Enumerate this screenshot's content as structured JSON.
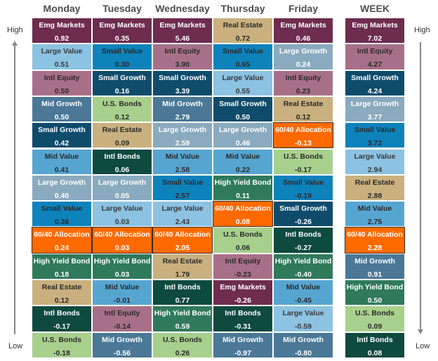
{
  "labels": {
    "high": "High",
    "low": "Low"
  },
  "colors": {
    "Emg Markets": [
      "#6e2c4f",
      "#ffffff"
    ],
    "Large Value": [
      "#8cc2e2",
      "#3a3a3a"
    ],
    "Small Value": [
      "#0e82bb",
      "#2a2a2a"
    ],
    "Intl Equity": [
      "#a87088",
      "#2a2a2a"
    ],
    "Mid Growth": [
      "#4a7896",
      "#ffffff"
    ],
    "Small Growth": [
      "#0f4c6c",
      "#ffffff"
    ],
    "Mid Value": [
      "#56a5d1",
      "#2a2a2a"
    ],
    "Large Growth": [
      "#8aaabf",
      "#ffffff"
    ],
    "60/40 Allocation": [
      "#ff6a00",
      "#ffffff"
    ],
    "High Yield Bond": [
      "#2f7a5a",
      "#ffffff"
    ],
    "Real Estate": [
      "#c9b07e",
      "#2a2a2a"
    ],
    "Intl Bonds": [
      "#0e4a3e",
      "#ffffff"
    ],
    "U.S. Bonds": [
      "#a8d08d",
      "#2a2a2a"
    ]
  },
  "columns": [
    {
      "title": "Monday",
      "cells": [
        {
          "name": "Emg Markets",
          "value": "0.92"
        },
        {
          "name": "Large Value",
          "value": "0.51"
        },
        {
          "name": "Intl Equity",
          "value": "0.50"
        },
        {
          "name": "Mid Growth",
          "value": "0.50"
        },
        {
          "name": "Small Growth",
          "value": "0.42"
        },
        {
          "name": "Mid Value",
          "value": "0.41"
        },
        {
          "name": "Large Growth",
          "value": "0.40"
        },
        {
          "name": "Small Value",
          "value": "0.36"
        },
        {
          "name": "60/40 Allocation",
          "value": "0.24"
        },
        {
          "name": "High Yield Bond",
          "value": "0.18"
        },
        {
          "name": "Real Estate",
          "value": "0.12"
        },
        {
          "name": "Intl Bonds",
          "value": "-0.17"
        },
        {
          "name": "U.S. Bonds",
          "value": "-0.18"
        }
      ]
    },
    {
      "title": "Tuesday",
      "cells": [
        {
          "name": "Emg Markets",
          "value": "0.35"
        },
        {
          "name": "Small Value",
          "value": "0.30"
        },
        {
          "name": "Small Growth",
          "value": "0.16"
        },
        {
          "name": "U.S. Bonds",
          "value": "0.12"
        },
        {
          "name": "Real Estate",
          "value": "0.09"
        },
        {
          "name": "Intl Bonds",
          "value": "0.06"
        },
        {
          "name": "Large Growth",
          "value": "0.05"
        },
        {
          "name": "Large Value",
          "value": "0.03"
        },
        {
          "name": "60/40 Allocation",
          "value": "0.03"
        },
        {
          "name": "High Yield Bond",
          "value": "0.03"
        },
        {
          "name": "Mid Value",
          "value": "-0.01"
        },
        {
          "name": "Intl Equity",
          "value": "-0.14"
        },
        {
          "name": "Mid Growth",
          "value": "-0.56"
        }
      ]
    },
    {
      "title": "Wednesday",
      "cells": [
        {
          "name": "Emg Markets",
          "value": "5.46"
        },
        {
          "name": "Intl Equity",
          "value": "3.90"
        },
        {
          "name": "Small Growth",
          "value": "3.39"
        },
        {
          "name": "Mid Growth",
          "value": "2.79"
        },
        {
          "name": "Large Growth",
          "value": "2.59"
        },
        {
          "name": "Mid Value",
          "value": "2.58"
        },
        {
          "name": "Small Value",
          "value": "2.57"
        },
        {
          "name": "Large Value",
          "value": "2.43"
        },
        {
          "name": "60/40 Allocation",
          "value": "2.05"
        },
        {
          "name": "Real Estate",
          "value": "1.79"
        },
        {
          "name": "Intl Bonds",
          "value": "0.77"
        },
        {
          "name": "High Yield Bond",
          "value": "0.59"
        },
        {
          "name": "U.S. Bonds",
          "value": "0.26"
        }
      ]
    },
    {
      "title": "Thursday",
      "cells": [
        {
          "name": "Real Estate",
          "value": "0.72"
        },
        {
          "name": "Small Value",
          "value": "0.65"
        },
        {
          "name": "Large Value",
          "value": "0.55"
        },
        {
          "name": "Small Growth",
          "value": "0.50"
        },
        {
          "name": "Large Growth",
          "value": "0.46"
        },
        {
          "name": "Mid Value",
          "value": "0.22"
        },
        {
          "name": "High Yield Bond",
          "value": "0.11"
        },
        {
          "name": "60/40 Allocation",
          "value": "0.08"
        },
        {
          "name": "U.S. Bonds",
          "value": "0.06"
        },
        {
          "name": "Intl Equity",
          "value": "-0.23"
        },
        {
          "name": "Emg Markets",
          "value": "-0.26"
        },
        {
          "name": "Intl Bonds",
          "value": "-0.31"
        },
        {
          "name": "Mid Growth",
          "value": "-0.97"
        }
      ]
    },
    {
      "title": "Friday",
      "cells": [
        {
          "name": "Emg Markets",
          "value": "0.46"
        },
        {
          "name": "Large Growth",
          "value": "0.24"
        },
        {
          "name": "Intl Equity",
          "value": "0.23"
        },
        {
          "name": "Real Estate",
          "value": "0.12"
        },
        {
          "name": "60/40 Allocation",
          "value": "-0.13"
        },
        {
          "name": "U.S. Bonds",
          "value": "-0.17"
        },
        {
          "name": "Small Value",
          "value": "-0.19"
        },
        {
          "name": "Small Growth",
          "value": "-0.26"
        },
        {
          "name": "Intl Bonds",
          "value": "-0.27"
        },
        {
          "name": "High Yield Bond",
          "value": "-0.40"
        },
        {
          "name": "Mid Value",
          "value": "-0.45"
        },
        {
          "name": "Large Value",
          "value": "-0.59"
        },
        {
          "name": "Mid Growth",
          "value": "-0.80"
        }
      ]
    },
    {
      "title": "WEEK",
      "cells": [
        {
          "name": "Emg Markets",
          "value": "7.02"
        },
        {
          "name": "Intl Equity",
          "value": "4.27"
        },
        {
          "name": "Small Growth",
          "value": "4.24"
        },
        {
          "name": "Large Growth",
          "value": "3.77"
        },
        {
          "name": "Small Value",
          "value": "3.72"
        },
        {
          "name": "Large Value",
          "value": "2.94"
        },
        {
          "name": "Real Estate",
          "value": "2.88"
        },
        {
          "name": "Mid Value",
          "value": "2.75"
        },
        {
          "name": "60/40 Allocation",
          "value": "2.28"
        },
        {
          "name": "Mid Growth",
          "value": "0.91"
        },
        {
          "name": "High Yield Bond",
          "value": "0.50"
        },
        {
          "name": "U.S. Bonds",
          "value": "0.09"
        },
        {
          "name": "Intl Bonds",
          "value": "0.08"
        }
      ]
    }
  ]
}
